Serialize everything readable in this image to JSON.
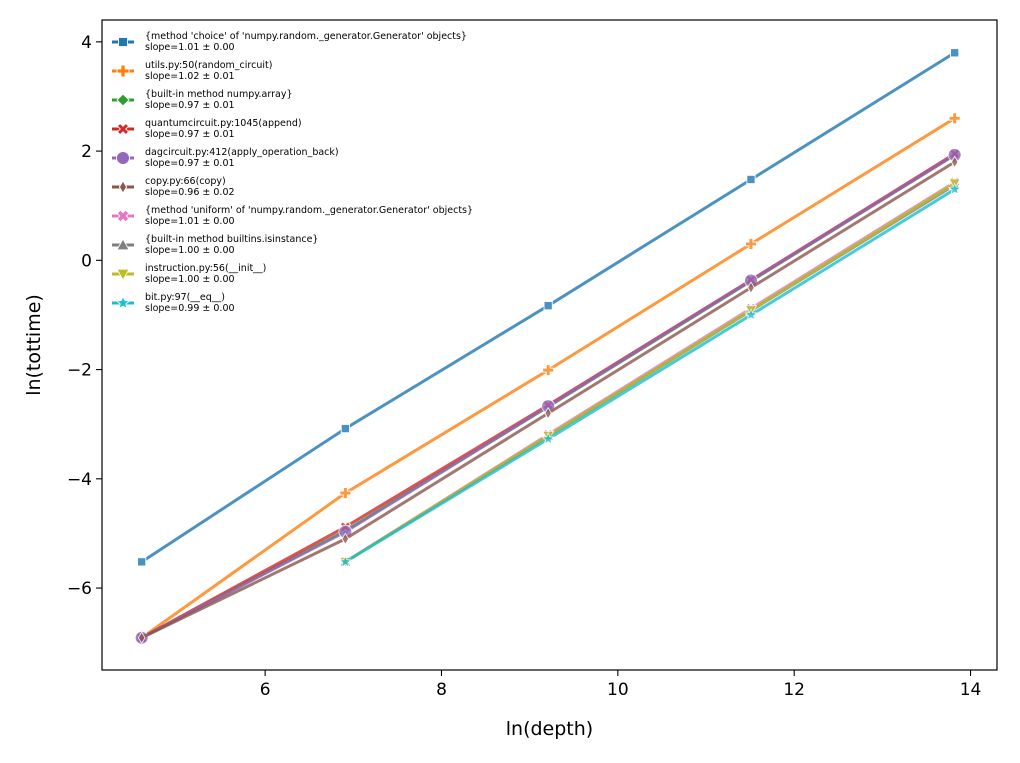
{
  "chart_data": {
    "type": "line",
    "xlabel": "ln(depth)",
    "ylabel": "ln(tottime)",
    "xlim": [
      4.15,
      14.3
    ],
    "ylim": [
      -7.5,
      4.4
    ],
    "xticks": [
      6,
      8,
      10,
      12,
      14
    ],
    "yticks": [
      -6,
      -4,
      -2,
      0,
      2,
      4
    ],
    "xtick_labels": [
      "6",
      "8",
      "10",
      "12",
      "14"
    ],
    "ytick_labels": [
      "−6",
      "−4",
      "−2",
      "0",
      "2",
      "4"
    ],
    "grid": false,
    "legend_position": "top-left",
    "series": [
      {
        "name": "{method 'choice' of 'numpy.random._generator.Generator' objects}",
        "slope": "slope=1.01 ± 0.00",
        "color": "#1f77b4",
        "marker": "square",
        "x": [
          4.6,
          6.91,
          9.21,
          11.51,
          13.82
        ],
        "y": [
          -5.52,
          -3.08,
          -0.83,
          1.48,
          3.8
        ]
      },
      {
        "name": "utils.py:50(random_circuit)",
        "slope": "slope=1.02 ± 0.01",
        "color": "#ff7f0e",
        "marker": "plus",
        "x": [
          4.6,
          6.91,
          9.21,
          11.51,
          13.82
        ],
        "y": [
          -6.91,
          -4.26,
          -2.01,
          0.3,
          2.6
        ]
      },
      {
        "name": "{built-in method numpy.array}",
        "slope": "slope=0.97 ± 0.01",
        "color": "#2ca02c",
        "marker": "diamond",
        "x": [
          4.6,
          6.91,
          9.21,
          11.51,
          13.82
        ],
        "y": [
          -6.91,
          -4.95,
          -2.68,
          -0.38,
          1.93
        ]
      },
      {
        "name": "quantumcircuit.py:1045(append)",
        "slope": "slope=0.97 ± 0.01",
        "color": "#d62728",
        "marker": "x",
        "x": [
          4.6,
          6.91,
          9.21,
          11.51,
          13.82
        ],
        "y": [
          -6.91,
          -4.88,
          -2.65,
          -0.36,
          1.95
        ]
      },
      {
        "name": "dagcircuit.py:412(apply_operation_back)",
        "slope": "slope=0.97 ± 0.01",
        "color": "#9467bd",
        "marker": "circle",
        "x": [
          4.6,
          6.91,
          9.21,
          11.51,
          13.82
        ],
        "y": [
          -6.91,
          -4.97,
          -2.67,
          -0.37,
          1.93
        ]
      },
      {
        "name": "copy.py:66(copy)",
        "slope": "slope=0.96 ± 0.02",
        "color": "#8c564b",
        "marker": "thin_diamond",
        "x": [
          4.6,
          6.91,
          9.21,
          11.51,
          13.82
        ],
        "y": [
          -6.91,
          -5.1,
          -2.8,
          -0.5,
          1.8
        ]
      },
      {
        "name": "{method 'uniform' of 'numpy.random._generator.Generator' objects}",
        "slope": "slope=1.01 ± 0.00",
        "color": "#e377c2",
        "marker": "x_thick",
        "x": [
          6.91,
          9.21,
          11.51,
          13.82
        ],
        "y": [
          -5.52,
          -3.19,
          -0.88,
          1.43
        ]
      },
      {
        "name": "{built-in method builtins.isinstance}",
        "slope": "slope=1.00 ± 0.00",
        "color": "#7f7f7f",
        "marker": "triangle_up",
        "x": [
          6.91,
          9.21,
          11.51,
          13.82
        ],
        "y": [
          -5.52,
          -3.22,
          -0.92,
          1.38
        ]
      },
      {
        "name": "instruction.py:56(__init__)",
        "slope": "slope=1.00 ± 0.00",
        "color": "#bcbd22",
        "marker": "triangle_down",
        "x": [
          6.91,
          9.21,
          11.51,
          13.82
        ],
        "y": [
          -5.52,
          -3.21,
          -0.91,
          1.41
        ]
      },
      {
        "name": "bit.py:97(__eq__)",
        "slope": "slope=0.99 ± 0.00",
        "color": "#17becf",
        "marker": "star",
        "x": [
          6.91,
          9.21,
          11.51,
          13.82
        ],
        "y": [
          -5.52,
          -3.27,
          -1.0,
          1.3
        ]
      }
    ]
  }
}
